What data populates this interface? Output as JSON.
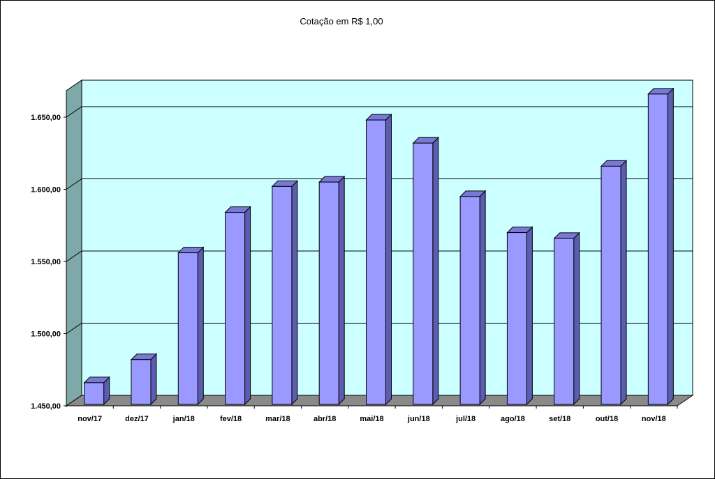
{
  "chart_data": {
    "type": "bar",
    "title": "Cotação em R$ 1,00",
    "xlabel": "",
    "ylabel": "",
    "categories": [
      "nov/17",
      "dez/17",
      "jan/18",
      "fev/18",
      "mar/18",
      "abr/18",
      "mai/18",
      "jun/18",
      "jul/18",
      "ago/18",
      "set/18",
      "out/18",
      "nov/18"
    ],
    "values": [
      1466,
      1482,
      1556,
      1584,
      1602,
      1605,
      1648,
      1632,
      1595,
      1570,
      1566,
      1616,
      1666
    ],
    "ylim": [
      1450,
      1670
    ],
    "yticks": [
      1450,
      1500,
      1550,
      1600,
      1650
    ],
    "ytick_labels": [
      "1.450,00",
      "1.500,00",
      "1.550,00",
      "1.600,00",
      "1.650,00"
    ],
    "grid": true,
    "colors": {
      "bar_front": "#9999ff",
      "bar_side": "#5c5cb0",
      "bar_top": "#7878d6",
      "back_wall": "#ccffff",
      "side_wall": "#7fa8a8",
      "floor": "#8a8a8a"
    }
  }
}
